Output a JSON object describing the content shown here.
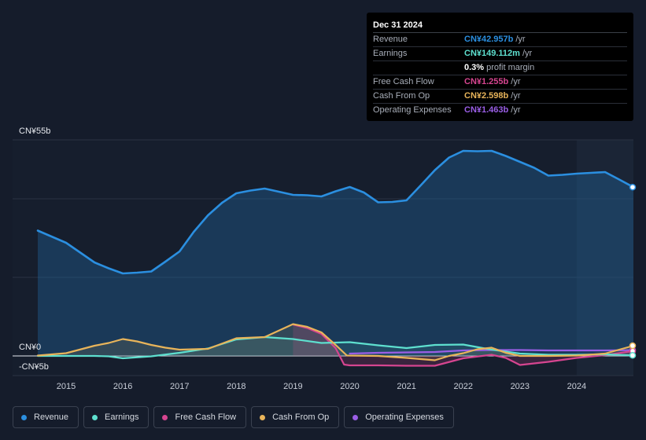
{
  "chart_data": {
    "type": "line",
    "unit": "CN¥",
    "y_axis": {
      "top_label": "CN¥55b",
      "zero_label": "CN¥0",
      "bottom_label": "-CN¥5b",
      "ylim": [
        -5,
        55
      ]
    },
    "x_axis": {
      "ticks": [
        "2015",
        "2016",
        "2017",
        "2018",
        "2019",
        "2020",
        "2021",
        "2022",
        "2023",
        "2024"
      ],
      "xlim": [
        2014.5,
        2025.0
      ]
    },
    "forecast_shade_start": 2024.0,
    "series": [
      {
        "name": "Revenue",
        "color": "#2b8fe0",
        "fill": true,
        "points": [
          [
            2014.5,
            31.9
          ],
          [
            2015.0,
            28.8
          ],
          [
            2015.5,
            23.8
          ],
          [
            2015.75,
            22.3
          ],
          [
            2016.0,
            21.0
          ],
          [
            2016.25,
            21.2
          ],
          [
            2016.5,
            21.5
          ],
          [
            2016.75,
            24.0
          ],
          [
            2017.0,
            26.6
          ],
          [
            2017.25,
            31.6
          ],
          [
            2017.5,
            35.8
          ],
          [
            2017.75,
            39.0
          ],
          [
            2018.0,
            41.4
          ],
          [
            2018.25,
            42.1
          ],
          [
            2018.5,
            42.6
          ],
          [
            2018.75,
            41.8
          ],
          [
            2019.0,
            41.0
          ],
          [
            2019.25,
            40.9
          ],
          [
            2019.5,
            40.6
          ],
          [
            2019.75,
            41.9
          ],
          [
            2020.0,
            43.0
          ],
          [
            2020.25,
            41.6
          ],
          [
            2020.5,
            39.1
          ],
          [
            2020.75,
            39.2
          ],
          [
            2021.0,
            39.6
          ],
          [
            2021.25,
            43.4
          ],
          [
            2021.5,
            47.3
          ],
          [
            2021.75,
            50.5
          ],
          [
            2022.0,
            52.2
          ],
          [
            2022.25,
            52.1
          ],
          [
            2022.5,
            52.2
          ],
          [
            2022.75,
            50.9
          ],
          [
            2023.0,
            49.4
          ],
          [
            2023.25,
            47.9
          ],
          [
            2023.5,
            45.9
          ],
          [
            2023.75,
            46.1
          ],
          [
            2024.0,
            46.4
          ],
          [
            2024.25,
            46.6
          ],
          [
            2024.5,
            46.8
          ],
          [
            2024.75,
            44.9
          ],
          [
            2025.0,
            42.957
          ]
        ]
      },
      {
        "name": "Earnings",
        "color": "#5ee0cf",
        "fill": true,
        "points": [
          [
            2014.5,
            0.0
          ],
          [
            2015.0,
            0.0
          ],
          [
            2015.5,
            0.0
          ],
          [
            2015.75,
            -0.1
          ],
          [
            2016.0,
            -0.6
          ],
          [
            2016.5,
            -0.1
          ],
          [
            2017.0,
            0.8
          ],
          [
            2017.5,
            1.9
          ],
          [
            2018.0,
            4.2
          ],
          [
            2018.5,
            4.8
          ],
          [
            2019.0,
            4.3
          ],
          [
            2019.5,
            3.3
          ],
          [
            2020.0,
            3.5
          ],
          [
            2020.5,
            2.7
          ],
          [
            2021.0,
            2.0
          ],
          [
            2021.5,
            2.8
          ],
          [
            2022.0,
            2.9
          ],
          [
            2022.5,
            1.6
          ],
          [
            2023.0,
            0.6
          ],
          [
            2023.5,
            0.3
          ],
          [
            2024.0,
            0.3
          ],
          [
            2024.5,
            0.4
          ],
          [
            2025.0,
            0.149
          ]
        ]
      },
      {
        "name": "Free Cash Flow",
        "color": "#d64590",
        "fill": true,
        "points": [
          [
            2019.0,
            8.0
          ],
          [
            2019.25,
            7.1
          ],
          [
            2019.5,
            5.6
          ],
          [
            2019.75,
            2.0
          ],
          [
            2019.9,
            -2.2
          ],
          [
            2020.0,
            -2.4
          ],
          [
            2020.5,
            -2.4
          ],
          [
            2021.0,
            -2.5
          ],
          [
            2021.5,
            -2.5
          ],
          [
            2022.0,
            -0.6
          ],
          [
            2022.5,
            0.3
          ],
          [
            2022.75,
            -0.5
          ],
          [
            2023.0,
            -2.3
          ],
          [
            2023.5,
            -1.5
          ],
          [
            2024.0,
            -0.5
          ],
          [
            2024.5,
            0.2
          ],
          [
            2025.0,
            1.255
          ]
        ]
      },
      {
        "name": "Cash From Op",
        "color": "#e8b45a",
        "fill": true,
        "points": [
          [
            2014.5,
            0.1
          ],
          [
            2015.0,
            0.7
          ],
          [
            2015.5,
            2.6
          ],
          [
            2015.75,
            3.3
          ],
          [
            2016.0,
            4.3
          ],
          [
            2016.25,
            3.7
          ],
          [
            2016.5,
            2.8
          ],
          [
            2016.75,
            2.1
          ],
          [
            2017.0,
            1.6
          ],
          [
            2017.5,
            1.8
          ],
          [
            2018.0,
            4.5
          ],
          [
            2018.5,
            4.8
          ],
          [
            2019.0,
            8.1
          ],
          [
            2019.25,
            7.4
          ],
          [
            2019.5,
            6.0
          ],
          [
            2019.75,
            2.8
          ],
          [
            2019.95,
            0.1
          ],
          [
            2020.5,
            0.0
          ],
          [
            2021.0,
            -0.5
          ],
          [
            2021.5,
            -1.1
          ],
          [
            2021.75,
            0.0
          ],
          [
            2022.0,
            0.7
          ],
          [
            2022.25,
            1.7
          ],
          [
            2022.5,
            2.1
          ],
          [
            2022.75,
            0.8
          ],
          [
            2023.0,
            0.0
          ],
          [
            2023.5,
            0.0
          ],
          [
            2024.0,
            0.1
          ],
          [
            2024.5,
            0.6
          ],
          [
            2025.0,
            2.598
          ]
        ]
      },
      {
        "name": "Operating Expenses",
        "color": "#9a5ee6",
        "fill": false,
        "points": [
          [
            2020.0,
            0.6
          ],
          [
            2020.5,
            0.8
          ],
          [
            2021.0,
            0.9
          ],
          [
            2021.5,
            1.0
          ],
          [
            2022.0,
            1.4
          ],
          [
            2022.5,
            1.5
          ],
          [
            2023.0,
            1.5
          ],
          [
            2023.5,
            1.4
          ],
          [
            2024.0,
            1.4
          ],
          [
            2024.5,
            1.4
          ],
          [
            2025.0,
            1.463
          ]
        ]
      }
    ]
  },
  "tooltip": {
    "date": "Dec 31 2024",
    "rows": [
      {
        "label": "Revenue",
        "value": "CN¥42.957b",
        "unit": "/yr",
        "color": "#2b8fe0"
      },
      {
        "label": "Earnings",
        "value": "CN¥149.112m",
        "unit": "/yr",
        "color": "#5ee0cf"
      },
      {
        "label": "",
        "value": "0.3%",
        "unit": "profit margin",
        "color": "#ffffff"
      },
      {
        "label": "Free Cash Flow",
        "value": "CN¥1.255b",
        "unit": "/yr",
        "color": "#d64590"
      },
      {
        "label": "Cash From Op",
        "value": "CN¥2.598b",
        "unit": "/yr",
        "color": "#e8b45a"
      },
      {
        "label": "Operating Expenses",
        "value": "CN¥1.463b",
        "unit": "/yr",
        "color": "#9a5ee6"
      }
    ]
  },
  "legend": [
    {
      "label": "Revenue",
      "color": "#2b8fe0"
    },
    {
      "label": "Earnings",
      "color": "#5ee0cf"
    },
    {
      "label": "Free Cash Flow",
      "color": "#d64590"
    },
    {
      "label": "Cash From Op",
      "color": "#e8b45a"
    },
    {
      "label": "Operating Expenses",
      "color": "#9a5ee6"
    }
  ]
}
